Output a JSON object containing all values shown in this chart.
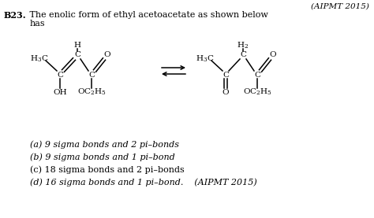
{
  "bg_color": "#ffffff",
  "header_right": "(AIPMT 2015)",
  "question_label": "B23.",
  "question_text": " The enolic form of ethyl acetoacetate as shown below",
  "question_text2": "has",
  "options": [
    "(a) 9 sigma bonds and 2 pi–bonds",
    "(b) 9 sigma bonds and 1 pi–bond",
    "(c) 18 sigma bonds and 2 pi–bonds",
    "(d) 16 sigma bonds and 1 pi–bond.    (AIPMT 2015)"
  ],
  "opt_styles": [
    "italic_a",
    "italic_b",
    "normal_c",
    "italic_d"
  ]
}
